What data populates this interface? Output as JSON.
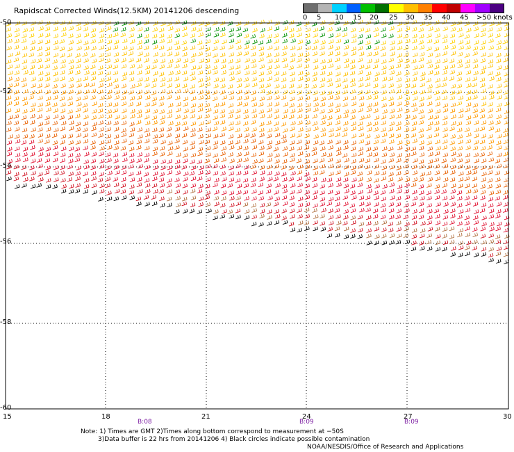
{
  "title": "Rapidscat Corrected Winds(12.5KM) 20141206 descending",
  "color_scale": {
    "labels": [
      "0",
      "5",
      "10",
      "15",
      "20",
      "25",
      "30",
      "35",
      "40",
      "45",
      ">50 knots"
    ],
    "colors": [
      "#6e6e6e",
      "#b4b4b4",
      "#00d2ff",
      "#0060ff",
      "#00c000",
      "#007000",
      "#ffff00",
      "#ffc000",
      "#ff8000",
      "#ff0000",
      "#c00000",
      "#ff00ff",
      "#a000ff",
      "#4b0082"
    ]
  },
  "axes": {
    "y_labels": [
      "-50",
      "-52",
      "-54",
      "-56",
      "-58",
      "-60"
    ],
    "x_labels": [
      "15",
      "18",
      "21",
      "24",
      "27",
      "30"
    ]
  },
  "pass_times": [
    "B:08",
    "B:09",
    "B:09"
  ],
  "notes": {
    "line1": "Note: 1) Times are GMT 2)Times along bottom correspond to measurement at −50S",
    "line2": "3)Data buffer is 22 hrs from 20141206 4) Black circles indicate possible contamination",
    "credit": "NOAA/NESDIS/Office of Research and Applications"
  }
}
